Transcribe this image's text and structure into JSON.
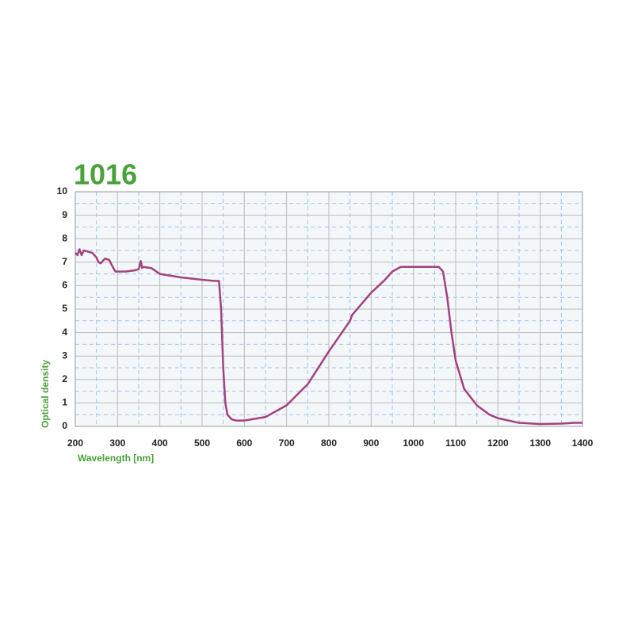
{
  "chart_data": {
    "type": "line",
    "title": "1016",
    "x_label": "Wavelength [nm]",
    "y_label": "Optical density",
    "xlim": [
      200,
      1400
    ],
    "ylim": [
      0,
      10
    ],
    "xticks": [
      200,
      300,
      400,
      500,
      600,
      700,
      800,
      900,
      1000,
      1100,
      1200,
      1300,
      1400
    ],
    "yticks": [
      0,
      1,
      2,
      3,
      4,
      5,
      6,
      7,
      8,
      9,
      10
    ],
    "minor_xticks": [
      250,
      350,
      450,
      550,
      650,
      750,
      850,
      950,
      1050,
      1150,
      1250,
      1350
    ],
    "minor_yticks": [
      0.5,
      1.5,
      2.5,
      3.5,
      4.5,
      5.5,
      6.5,
      7.5,
      8.5,
      9.5
    ],
    "grid": true,
    "series": [
      {
        "color": "#a3427d",
        "x": [
          200,
          205,
          210,
          215,
          220,
          230,
          240,
          250,
          255,
          260,
          270,
          280,
          290,
          295,
          300,
          320,
          340,
          350,
          355,
          358,
          360,
          380,
          400,
          450,
          500,
          530,
          540,
          545,
          550,
          555,
          560,
          570,
          580,
          600,
          650,
          700,
          750,
          800,
          850,
          855,
          900,
          930,
          950,
          970,
          1000,
          1050,
          1060,
          1070,
          1080,
          1090,
          1100,
          1120,
          1150,
          1180,
          1200,
          1250,
          1300,
          1350,
          1380,
          1400
        ],
        "values": [
          7.4,
          7.3,
          7.55,
          7.3,
          7.5,
          7.45,
          7.4,
          7.2,
          7.0,
          6.95,
          7.15,
          7.1,
          6.75,
          6.6,
          6.6,
          6.6,
          6.65,
          6.7,
          7.05,
          6.75,
          6.8,
          6.75,
          6.5,
          6.35,
          6.25,
          6.2,
          6.2,
          5.0,
          2.5,
          1.0,
          0.5,
          0.3,
          0.25,
          0.25,
          0.4,
          0.9,
          1.8,
          3.2,
          4.5,
          4.75,
          5.7,
          6.2,
          6.6,
          6.8,
          6.8,
          6.8,
          6.8,
          6.6,
          5.5,
          4.0,
          2.8,
          1.6,
          0.9,
          0.5,
          0.35,
          0.15,
          0.1,
          0.12,
          0.15,
          0.15
        ]
      }
    ]
  }
}
